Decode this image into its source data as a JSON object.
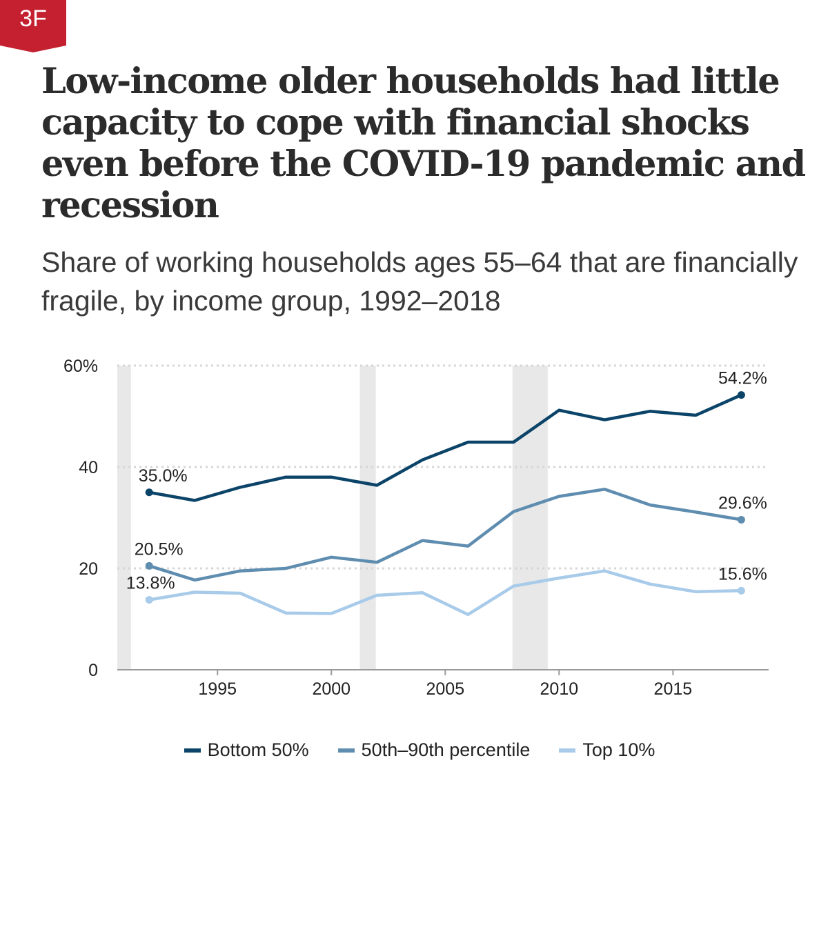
{
  "badge": {
    "label": "3F",
    "color": "#c4202f"
  },
  "title": "Low-income older households had little capacity to cope with financial shocks even before the COVID-19 pandemic and recession",
  "subtitle": "Share of working households ages 55–64 that are financially fragile, by income group, 1992–2018",
  "chart_data": {
    "type": "line",
    "title": "",
    "xlabel": "",
    "ylabel": "",
    "xlim": [
      1990.6,
      2019.2
    ],
    "ylim": [
      0,
      60
    ],
    "y_ticks": [
      0,
      20,
      40,
      60
    ],
    "y_tick_labels": [
      "0",
      "20",
      "40",
      "60%"
    ],
    "x_ticks": [
      1995,
      2000,
      2005,
      2010,
      2015
    ],
    "x_tick_labels": [
      "1995",
      "2000",
      "2005",
      "2010",
      "2015"
    ],
    "grid": "horizontal dotted",
    "legend_position": "bottom",
    "recession_shading": [
      [
        1990.6,
        1991.2
      ],
      [
        2001.25,
        2001.95
      ],
      [
        2007.95,
        2009.5
      ]
    ],
    "recession_color": "#e8e8e8",
    "x": [
      1992,
      1994,
      1996,
      1998,
      2000,
      2002,
      2004,
      2006,
      2008,
      2010,
      2012,
      2014,
      2016,
      2018
    ],
    "series": [
      {
        "name": "Bottom 50%",
        "color": "#0b4468",
        "values": [
          35.0,
          33.4,
          36.0,
          38.0,
          38.0,
          36.4,
          41.4,
          44.9,
          44.9,
          51.2,
          49.3,
          51.0,
          50.2,
          54.2
        ]
      },
      {
        "name": "50th–90th percentile",
        "color": "#5f8db0",
        "values": [
          20.5,
          17.7,
          19.5,
          20.0,
          22.2,
          21.2,
          25.5,
          24.4,
          31.2,
          34.2,
          35.6,
          32.5,
          31.1,
          29.6
        ]
      },
      {
        "name": "Top 10%",
        "color": "#a8cbea",
        "values": [
          13.8,
          15.3,
          15.1,
          11.2,
          11.1,
          14.7,
          15.2,
          10.9,
          16.5,
          18.1,
          19.5,
          16.9,
          15.4,
          15.6
        ]
      }
    ],
    "annotations": [
      {
        "series": 0,
        "point": 0,
        "text": "35.0%"
      },
      {
        "series": 0,
        "point": 13,
        "text": "54.2%"
      },
      {
        "series": 1,
        "point": 0,
        "text": "20.5%"
      },
      {
        "series": 1,
        "point": 13,
        "text": "29.6%"
      },
      {
        "series": 2,
        "point": 0,
        "text": "13.8%"
      },
      {
        "series": 2,
        "point": 13,
        "text": "15.6%"
      }
    ]
  },
  "legend": [
    {
      "label": "Bottom 50%",
      "color": "#0b4468"
    },
    {
      "label": "50th–90th percentile",
      "color": "#5f8db0"
    },
    {
      "label": "Top 10%",
      "color": "#a8cbea"
    }
  ]
}
